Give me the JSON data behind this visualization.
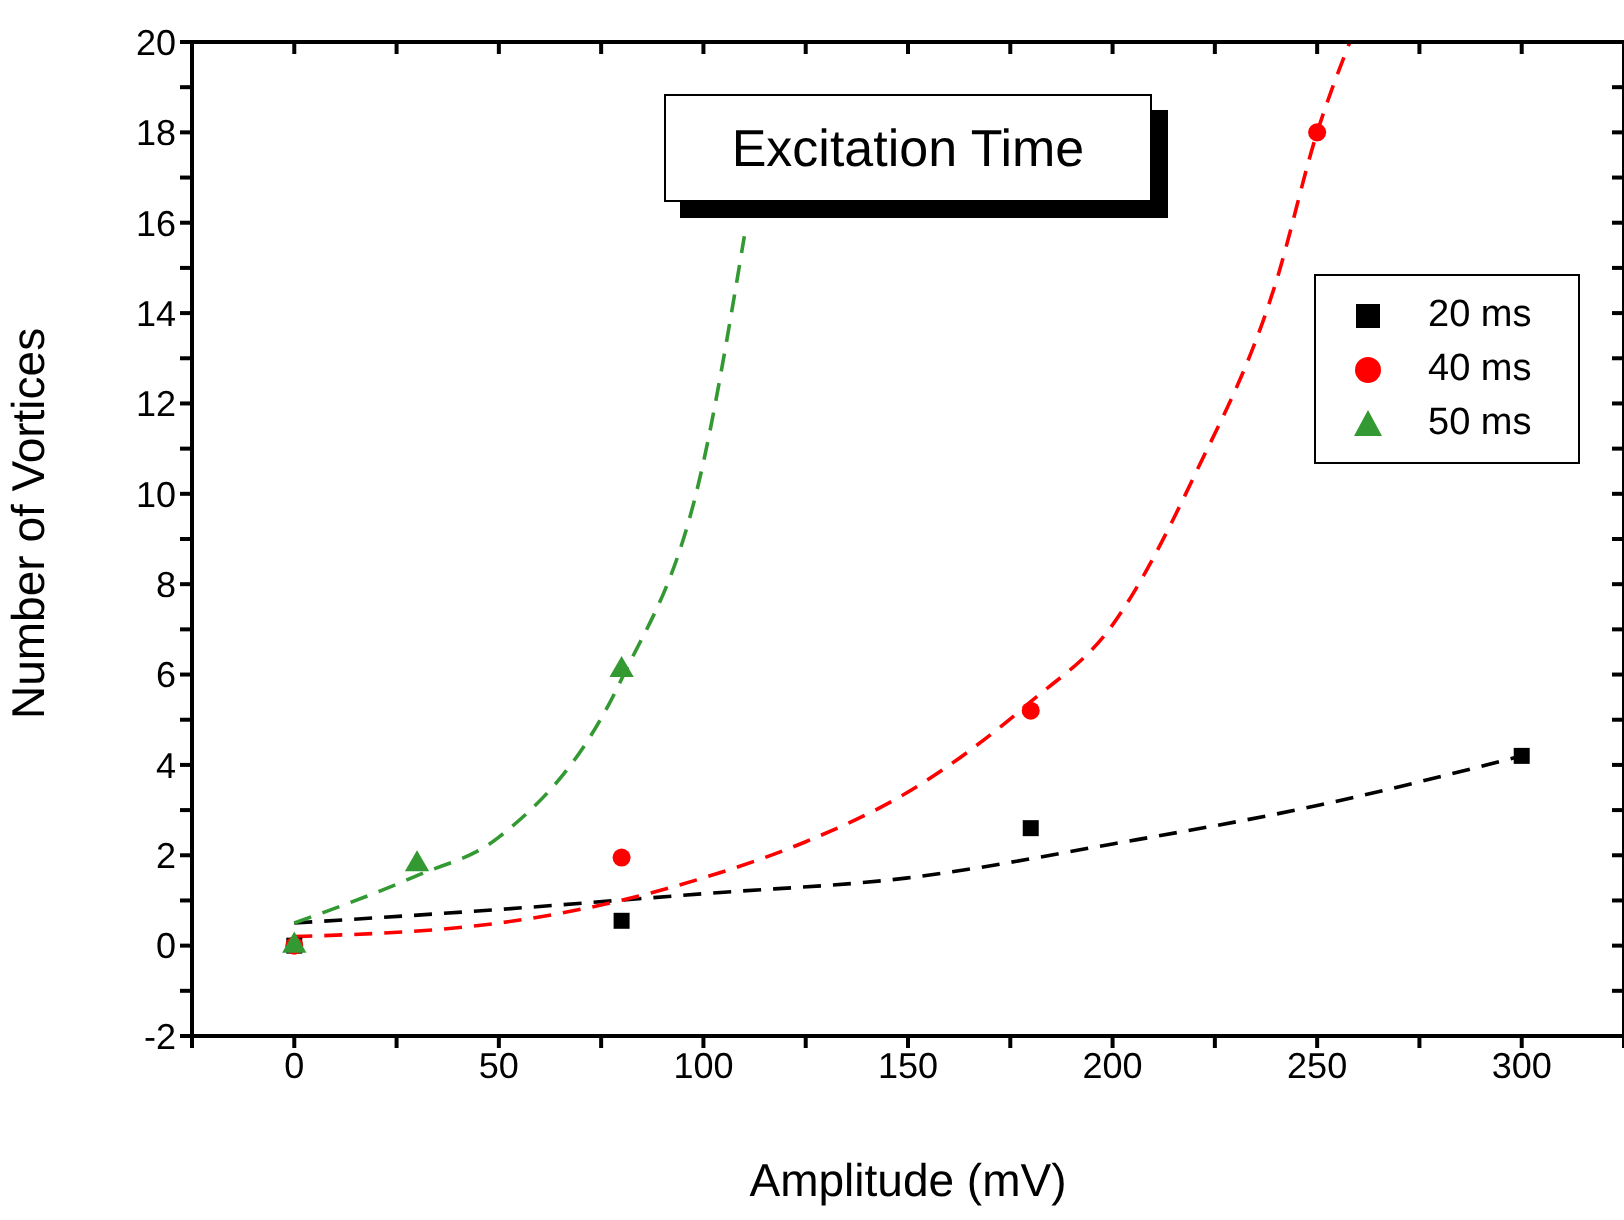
{
  "chart_data": {
    "type": "scatter",
    "title": "Excitation Time",
    "xlabel": "Amplitude (mV)",
    "ylabel": "Number of Vortices",
    "xlim": [
      -25,
      325
    ],
    "ylim": [
      -2,
      20
    ],
    "xticks": [
      {
        "value": -25,
        "label": null
      },
      0,
      {
        "value": 25,
        "label": null
      },
      50,
      {
        "value": 75,
        "label": null
      },
      100,
      {
        "value": 125,
        "label": null
      },
      150,
      {
        "value": 175,
        "label": null
      },
      200,
      {
        "value": 225,
        "label": null
      },
      250,
      {
        "value": 275,
        "label": null
      },
      300,
      {
        "value": 325,
        "label": null
      }
    ],
    "yticks": [
      -2,
      {
        "value": -1,
        "label": null
      },
      0,
      {
        "value": 1,
        "label": null
      },
      2,
      {
        "value": 3,
        "label": null
      },
      4,
      {
        "value": 5,
        "label": null
      },
      6,
      {
        "value": 7,
        "label": null
      },
      8,
      {
        "value": 9,
        "label": null
      },
      10,
      {
        "value": 11,
        "label": null
      },
      12,
      {
        "value": 13,
        "label": null
      },
      14,
      {
        "value": 15,
        "label": null
      },
      16,
      {
        "value": 17,
        "label": null
      },
      18,
      {
        "value": 19,
        "label": null
      },
      20
    ],
    "legend": "top right",
    "series": [
      {
        "name": "20 ms",
        "color": "#000000",
        "marker": "square",
        "x": [
          0,
          80,
          180,
          300
        ],
        "values": [
          0,
          0.55,
          2.6,
          4.2
        ]
      },
      {
        "name": "40 ms",
        "color": "#ff0000",
        "marker": "circle",
        "x": [
          0,
          80,
          180,
          250
        ],
        "values": [
          0,
          1.95,
          5.2,
          18
        ]
      },
      {
        "name": "50 ms",
        "color": "#339933",
        "marker": "triangle",
        "x": [
          0,
          30,
          80
        ],
        "values": [
          0,
          1.8,
          6.1
        ]
      },
      {
        "type": "line",
        "color": "#000000",
        "marker": "none",
        "line_style": "dashed",
        "x": [
          0,
          50,
          100,
          150,
          200,
          250,
          300
        ],
        "values": [
          0.5,
          0.8,
          1.15,
          1.5,
          2.25,
          3.1,
          4.2
        ]
      },
      {
        "type": "line",
        "color": "#ff0000",
        "marker": "none",
        "line_style": "dashed",
        "x": [
          0,
          50,
          75,
          100,
          125,
          150,
          180,
          200,
          220,
          240,
          250,
          258
        ],
        "values": [
          0.2,
          0.5,
          0.9,
          1.5,
          2.3,
          3.4,
          5.4,
          7.1,
          10.4,
          14.7,
          18,
          20
        ]
      },
      {
        "type": "line",
        "color": "#339933",
        "marker": "none",
        "line_style": "dashed",
        "x": [
          0,
          30,
          50,
          80,
          100,
          110
        ],
        "values": [
          0.5,
          1.55,
          2.4,
          5.9,
          10.7,
          15.7
        ]
      }
    ]
  }
}
